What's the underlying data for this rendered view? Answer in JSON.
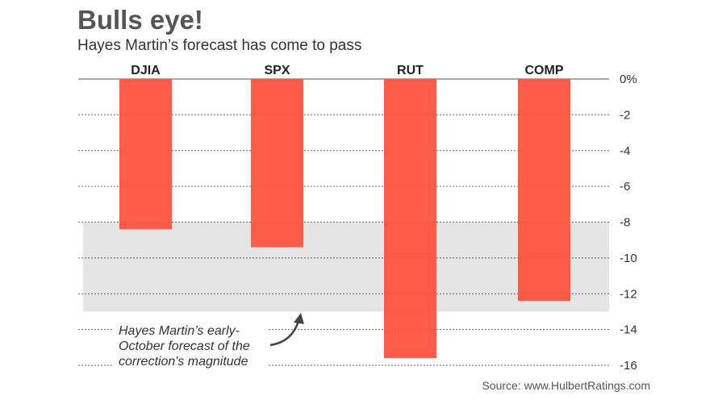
{
  "chart_data": {
    "type": "bar",
    "title": "Bulls eye!",
    "subtitle": "Hayes Martin’s forecast has come to pass",
    "categories": [
      "DJIA",
      "SPX",
      "RUT",
      "COMP"
    ],
    "values": [
      -8.4,
      -9.4,
      -15.6,
      -12.4
    ],
    "ylim": [
      -16,
      0
    ],
    "yticks": [
      0,
      -2,
      -4,
      -6,
      -8,
      -10,
      -12,
      -14,
      -16
    ],
    "ytick_labels": [
      "0%",
      "-2",
      "-4",
      "-6",
      "-8",
      "-10",
      "-12",
      "-14",
      "-16"
    ],
    "grid": true,
    "bar_color": "#ff503c",
    "band": {
      "from": -8,
      "to": -13,
      "color": "#e5e5e5"
    },
    "annotation": [
      "Hayes Martin’s early-",
      "October forecast of the",
      "correction's magnitude"
    ],
    "source": "Source: www.HulbertRatings.com"
  }
}
